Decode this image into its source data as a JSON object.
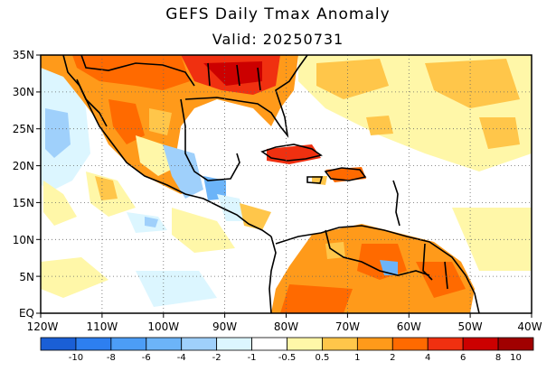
{
  "title": "GEFS Daily Tmax Anomaly",
  "subtitle": "Valid: 20250731",
  "lat_labels": [
    "35N",
    "30N",
    "25N",
    "20N",
    "15N",
    "10N",
    "5N",
    "EQ"
  ],
  "lon_labels": [
    "120W",
    "110W",
    "100W",
    "90W",
    "80W",
    "70W",
    "60W",
    "50W",
    "40W"
  ],
  "colorbar": {
    "colors": [
      "#1a5fd6",
      "#2d7ff0",
      "#4c9df6",
      "#6cb4f8",
      "#9fd0fb",
      "#dcf6ff",
      "#ffffff",
      "#fff7a8",
      "#ffc64a",
      "#ff9a1a",
      "#ff6a00",
      "#f03010",
      "#cc0000",
      "#a00000"
    ],
    "labels": [
      "-10",
      "-8",
      "-6",
      "-4",
      "-2",
      "-1",
      "-0.5",
      "0.5",
      "1",
      "2",
      "4",
      "6",
      "8",
      "10"
    ]
  },
  "map": {
    "lon_range": [
      -120,
      -40
    ],
    "lat_range": [
      0,
      35
    ],
    "grid": true,
    "gridline_style": "dotted"
  }
}
